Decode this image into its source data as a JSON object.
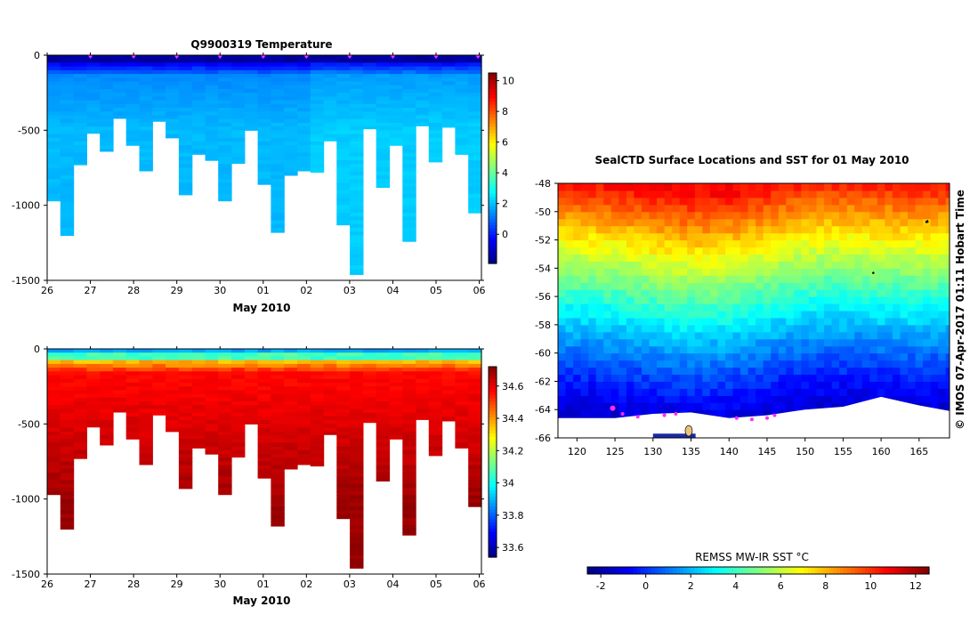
{
  "chart_data": [
    {
      "type": "heatmap",
      "title": "Q9900319  Temperature",
      "xlabel": "May 2010",
      "x_ticks": [
        "26",
        "27",
        "28",
        "29",
        "30",
        "01",
        "02",
        "03",
        "04",
        "05",
        "06"
      ],
      "x_range_days": [
        26.0,
        36.05
      ],
      "ylim": [
        -1500,
        0
      ],
      "y_ticks": [
        "0",
        "-500",
        "-1000",
        "-1500"
      ],
      "colorbar": {
        "min": -1.9,
        "max": 10.5,
        "ticks": [
          "10",
          "8",
          "6",
          "4",
          "2",
          "0"
        ],
        "tick_values": [
          10,
          8,
          6,
          4,
          2,
          0
        ]
      },
      "profile_max_depth_m": [
        970,
        1200,
        730,
        520,
        640,
        420,
        600,
        770,
        440,
        550,
        930,
        660,
        700,
        970,
        720,
        500,
        860,
        1180,
        800,
        770,
        780,
        570,
        1130,
        1460,
        490,
        880,
        600,
        1240,
        470,
        710,
        480,
        660,
        1050
      ],
      "surface_marker_days": [
        27.0,
        28.0,
        29.0,
        30.0,
        31.0,
        32.0,
        33.0,
        34.0,
        35.0,
        35.97
      ]
    },
    {
      "type": "heatmap",
      "title": "",
      "xlabel": "May 2010",
      "x_ticks": [
        "26",
        "27",
        "28",
        "29",
        "30",
        "01",
        "02",
        "03",
        "04",
        "05",
        "06"
      ],
      "x_range_days": [
        26.0,
        36.05
      ],
      "ylim": [
        -1500,
        0
      ],
      "y_ticks": [
        "0",
        "-500",
        "-1000",
        "-1500"
      ],
      "colorbar": {
        "min": 33.54,
        "max": 34.72,
        "ticks": [
          "34.6",
          "34.4",
          "34.2",
          "34",
          "33.8",
          "33.6"
        ],
        "tick_values": [
          34.6,
          34.4,
          34.2,
          34.0,
          33.8,
          33.6
        ]
      },
      "profile_max_depth_m": [
        970,
        1200,
        730,
        520,
        640,
        420,
        600,
        770,
        440,
        550,
        930,
        660,
        700,
        970,
        720,
        500,
        860,
        1180,
        800,
        770,
        780,
        570,
        1130,
        1460,
        490,
        880,
        600,
        1240,
        470,
        710,
        480,
        660,
        1050
      ]
    },
    {
      "type": "heatmap",
      "title": "SealCTD Surface Locations and SST for 01 May 2010",
      "xlabel": "",
      "x_ticks": [
        "120",
        "125",
        "130",
        "135",
        "140",
        "145",
        "150",
        "155",
        "160",
        "165"
      ],
      "xlim": [
        117.5,
        169
      ],
      "y_ticks": [
        "-48",
        "-50",
        "-52",
        "-54",
        "-56",
        "-58",
        "-60",
        "-62",
        "-64",
        "-66"
      ],
      "ylim": [
        -66,
        -48
      ],
      "side_label": "© IMOS 07-Apr-2017 01:11 Hobart Time",
      "colorbar": {
        "title": "REMSS MW-IR SST °C",
        "min": -2.6,
        "max": 12.6,
        "ticks": [
          "-2",
          "0",
          "2",
          "4",
          "6",
          "8",
          "10",
          "12"
        ],
        "tick_values": [
          -2,
          0,
          2,
          4,
          6,
          8,
          10,
          12
        ]
      },
      "ice_edge_lat_by_lon": [
        [
          117.5,
          -64.6
        ],
        [
          125,
          -64.6
        ],
        [
          130,
          -64.3
        ],
        [
          135,
          -64.2
        ],
        [
          140,
          -64.6
        ],
        [
          145,
          -64.4
        ],
        [
          150,
          -64.0
        ],
        [
          155,
          -63.8
        ],
        [
          160,
          -63.1
        ],
        [
          165,
          -63.7
        ],
        [
          169,
          -64.1
        ]
      ],
      "seal_track_points": [
        [
          124.7,
          -63.9
        ],
        [
          126,
          -64.3
        ],
        [
          128,
          -64.5
        ],
        [
          131.5,
          -64.4
        ],
        [
          133,
          -64.3
        ],
        [
          141,
          -64.6
        ],
        [
          143,
          -64.7
        ],
        [
          145,
          -64.6
        ],
        [
          146,
          -64.4
        ]
      ]
    }
  ]
}
